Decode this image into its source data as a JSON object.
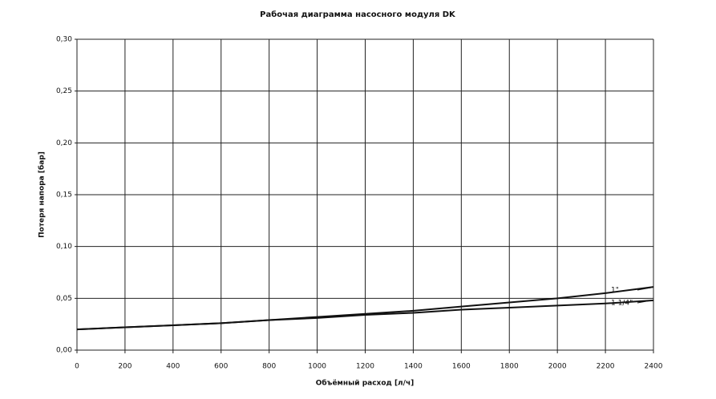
{
  "chart_data": {
    "type": "line",
    "title": "Рабочая диаграмма насосного модуля DK",
    "x_label": "Объёмный расход [л/ч]",
    "y_label": "Потеря напора [бар]",
    "x": [
      0,
      200,
      400,
      600,
      800,
      1000,
      1200,
      1400,
      1600,
      1800,
      2000,
      2200,
      2400
    ],
    "series": [
      {
        "name": "1\"",
        "color": "#111111",
        "values": [
          0.02,
          0.022,
          0.024,
          0.026,
          0.029,
          0.032,
          0.035,
          0.038,
          0.042,
          0.046,
          0.05,
          0.055,
          0.061
        ]
      },
      {
        "name": "1 1/4\"",
        "color": "#111111",
        "values": [
          0.02,
          0.022,
          0.024,
          0.026,
          0.029,
          0.031,
          0.034,
          0.036,
          0.039,
          0.041,
          0.043,
          0.045,
          0.048
        ]
      }
    ],
    "xlim": [
      0,
      2400
    ],
    "ylim": [
      0,
      0.3
    ],
    "xticks": [
      0,
      200,
      400,
      600,
      800,
      1000,
      1200,
      1400,
      1600,
      1800,
      2000,
      2200,
      2400
    ],
    "yticks": [
      {
        "value": 0,
        "label": "0,00"
      },
      {
        "value": 0.05,
        "label": "0,05"
      },
      {
        "value": 0.1,
        "label": "0,10"
      },
      {
        "value": 0.15,
        "label": "0,15"
      },
      {
        "value": 0.2,
        "label": "0,20"
      },
      {
        "value": 0.25,
        "label": "0,25"
      },
      {
        "value": 0.3,
        "label": "0,30"
      }
    ],
    "grid": true
  }
}
